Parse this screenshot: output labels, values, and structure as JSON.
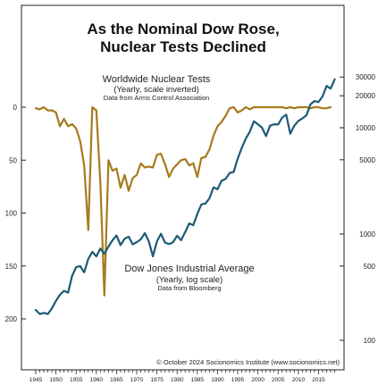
{
  "chart_data": {
    "type": "line",
    "title_lines": [
      "As the Nominal Dow Rose,",
      "Nuclear Tests Declined"
    ],
    "x_range": [
      1945,
      2019
    ],
    "x_ticks": [
      1945,
      1950,
      1955,
      1960,
      1965,
      1970,
      1975,
      1980,
      1985,
      1990,
      1995,
      2000,
      2005,
      2010,
      2015
    ],
    "left_axis": {
      "scale": "linear-inverted",
      "range": [
        0,
        200
      ],
      "ticks": [
        0,
        50,
        100,
        150,
        200
      ]
    },
    "right_axis": {
      "scale": "log",
      "range": [
        100,
        30000
      ],
      "ticks": [
        100,
        500,
        1000,
        5000,
        10000,
        20000,
        30000
      ]
    },
    "annotations": {
      "nuclear": {
        "title": "Worldwide Nuclear Tests",
        "subtitle": "(Yearly, scale inverted)",
        "source": "Data from Arms Control Association"
      },
      "dow": {
        "title": "Dow Jones Industrial Average",
        "subtitle": "(Yearly, log scale)",
        "source": "Data from Bloomberg"
      },
      "copyright": "© October 2024 Socionomics Institute (www.socionomics.net)"
    },
    "series": [
      {
        "key": "nuclear_tests",
        "axis": "left",
        "color": "#a67a1c",
        "x": [
          1945,
          1946,
          1947,
          1948,
          1949,
          1950,
          1951,
          1952,
          1953,
          1954,
          1955,
          1956,
          1957,
          1958,
          1959,
          1960,
          1961,
          1962,
          1963,
          1964,
          1965,
          1966,
          1967,
          1968,
          1969,
          1970,
          1971,
          1972,
          1973,
          1974,
          1975,
          1976,
          1977,
          1978,
          1979,
          1980,
          1981,
          1982,
          1983,
          1984,
          1985,
          1986,
          1987,
          1988,
          1989,
          1990,
          1991,
          1992,
          1993,
          1994,
          1995,
          1996,
          1997,
          1998,
          1999,
          2000,
          2001,
          2002,
          2003,
          2004,
          2005,
          2006,
          2007,
          2008,
          2009,
          2010,
          2011,
          2012,
          2013,
          2014,
          2015,
          2016,
          2017,
          2018
        ],
        "values": [
          1,
          2,
          0,
          3,
          3,
          5,
          18,
          11,
          18,
          16,
          20,
          32,
          55,
          116,
          0,
          3,
          71,
          178,
          50,
          60,
          58,
          76,
          64,
          79,
          67,
          64,
          53,
          57,
          56,
          57,
          45,
          44,
          54,
          66,
          58,
          54,
          50,
          49,
          55,
          53,
          66,
          48,
          47,
          40,
          27,
          18,
          14,
          8,
          1,
          0,
          5,
          3,
          0,
          2,
          0,
          0,
          0,
          0,
          0,
          0,
          0,
          0,
          1,
          0,
          1,
          0,
          0,
          0,
          1,
          0,
          0,
          1,
          1,
          0
        ]
      },
      {
        "key": "dow_jones",
        "axis": "right",
        "color": "#1d5a78",
        "x": [
          1945,
          1946,
          1947,
          1948,
          1949,
          1950,
          1951,
          1952,
          1953,
          1954,
          1955,
          1956,
          1957,
          1958,
          1959,
          1960,
          1961,
          1962,
          1963,
          1964,
          1965,
          1966,
          1967,
          1968,
          1969,
          1970,
          1971,
          1972,
          1973,
          1974,
          1975,
          1976,
          1977,
          1978,
          1979,
          1980,
          1981,
          1982,
          1983,
          1984,
          1985,
          1986,
          1987,
          1988,
          1989,
          1990,
          1991,
          1992,
          1993,
          1994,
          1995,
          1996,
          1997,
          1998,
          1999,
          2000,
          2001,
          2002,
          2003,
          2004,
          2005,
          2006,
          2007,
          2008,
          2009,
          2010,
          2011,
          2012,
          2013,
          2014,
          2015,
          2016,
          2017,
          2018,
          2019
        ],
        "values": [
          193,
          177,
          181,
          177,
          200,
          235,
          269,
          292,
          281,
          404,
          488,
          499,
          436,
          584,
          679,
          616,
          731,
          652,
          763,
          874,
          969,
          786,
          905,
          944,
          800,
          839,
          890,
          1020,
          850,
          616,
          852,
          1005,
          831,
          805,
          839,
          964,
          875,
          1047,
          1259,
          1212,
          1547,
          1896,
          1939,
          2169,
          2753,
          2634,
          3169,
          3301,
          3754,
          3834,
          5117,
          6448,
          7908,
          9181,
          11497,
          10787,
          10022,
          8342,
          10454,
          10783,
          10718,
          12463,
          13265,
          8776,
          10428,
          11578,
          12218,
          13104,
          16577,
          17823,
          17425,
          19763,
          24719,
          23327,
          28538
        ]
      }
    ]
  }
}
